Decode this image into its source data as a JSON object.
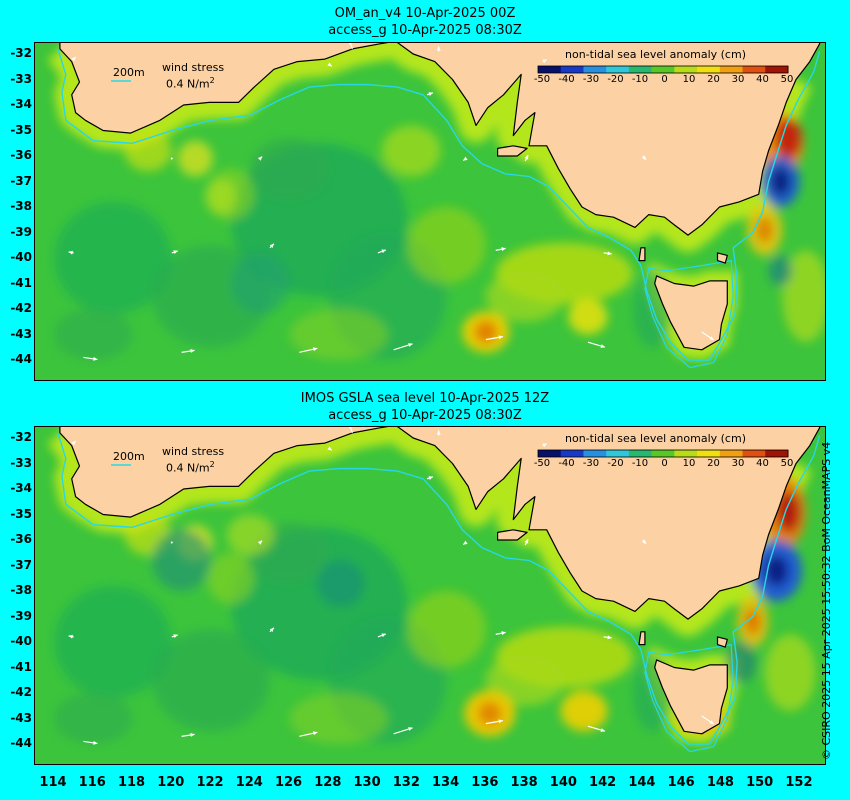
{
  "panels": [
    {
      "title_line1": "OM_an_v4  10-Apr-2025 00Z",
      "title_line2": "access_g 10-Apr-2025 08:30Z",
      "colorbar_title": "non-tidal sea level anomaly (cm)",
      "scale_label": "200m",
      "wind_label": "wind stress",
      "wind_value": "0.4 N/m",
      "wind_exp": "2"
    },
    {
      "title_line1": "IMOS GSLA sea level  10-Apr-2025 12Z",
      "title_line2": "access_g 10-Apr-2025 08:30Z",
      "colorbar_title": "non-tidal sea level anomaly (cm)",
      "scale_label": "200m",
      "wind_label": "wind stress",
      "wind_value": "0.4 N/m",
      "wind_exp": "2"
    }
  ],
  "colorbar_ticks": [
    "-50",
    "-40",
    "-30",
    "-20",
    "-10",
    "0",
    "10",
    "20",
    "30",
    "40",
    "50"
  ],
  "lat_labels": [
    "-32",
    "-33",
    "-34",
    "-35",
    "-36",
    "-37",
    "-38",
    "-39",
    "-40",
    "-41",
    "-42",
    "-43",
    "-44"
  ],
  "lon_labels": [
    "114",
    "116",
    "118",
    "120",
    "122",
    "124",
    "126",
    "128",
    "130",
    "132",
    "134",
    "136",
    "138",
    "140",
    "142",
    "144",
    "146",
    "148",
    "150",
    "152"
  ],
  "credit": "© CSIRO 2025   15 Apr 2025 15:50:32 BoM OceanMAPS v4",
  "colors": {
    "background": "#00ffff",
    "land": "#fcd1a4",
    "ocean_base": "#3cc43c",
    "shelf_band": "#b4e61e",
    "isobath": "#28d7e6"
  }
}
